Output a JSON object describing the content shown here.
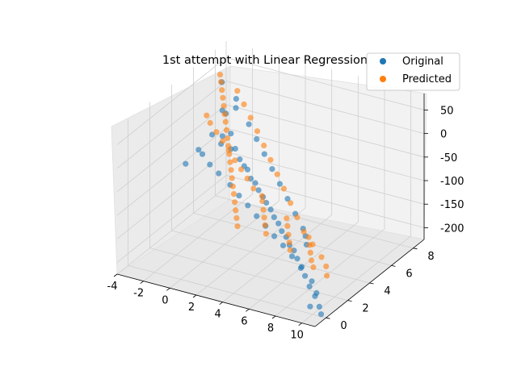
{
  "chart_data": {
    "type": "scatter",
    "projection": "3d",
    "title": "1st attempt with Linear Regression",
    "xlabel": "",
    "ylabel": "",
    "zlabel": "",
    "grid": true,
    "legend_position": "top-right",
    "xlim": [
      -4,
      11
    ],
    "ylim": [
      -1,
      9
    ],
    "zlim": [
      -225,
      85
    ],
    "x_ticks": [
      "-4",
      "-2",
      "0",
      "2",
      "4",
      "6",
      "8",
      "10"
    ],
    "y_ticks": [
      "0",
      "2",
      "4",
      "6",
      "8"
    ],
    "z_ticks": [
      "50",
      "0",
      "-50",
      "-100",
      "-150",
      "-200"
    ],
    "series": [
      {
        "name": "Original",
        "color": "#1f77b4",
        "points": [
          [
            -3.5,
            8.0,
            20
          ],
          [
            -3.0,
            6.5,
            -60
          ],
          [
            -2.8,
            7.2,
            -20
          ],
          [
            -2.2,
            6.8,
            -15
          ],
          [
            -1.8,
            6.0,
            -45
          ],
          [
            -1.5,
            5.5,
            -50
          ],
          [
            -1.0,
            5.8,
            -30
          ],
          [
            -0.5,
            5.2,
            -48
          ],
          [
            0.0,
            5.0,
            -40
          ],
          [
            0.5,
            4.8,
            -55
          ],
          [
            1.0,
            4.6,
            -62
          ],
          [
            1.5,
            4.3,
            -60
          ],
          [
            2.0,
            4.0,
            -70
          ],
          [
            2.5,
            3.8,
            -72
          ],
          [
            3.0,
            3.5,
            -78
          ],
          [
            3.5,
            3.3,
            -85
          ],
          [
            4.0,
            3.0,
            -88
          ],
          [
            4.5,
            2.8,
            -95
          ],
          [
            5.0,
            2.5,
            -102
          ],
          [
            5.5,
            2.3,
            -108
          ],
          [
            6.0,
            2.0,
            -115
          ],
          [
            6.5,
            1.8,
            -120
          ],
          [
            7.0,
            1.5,
            -128
          ],
          [
            7.5,
            1.3,
            -132
          ],
          [
            8.0,
            1.0,
            -140
          ],
          [
            8.5,
            0.8,
            -150
          ],
          [
            9.0,
            0.5,
            -160
          ],
          [
            9.5,
            0.3,
            -175
          ],
          [
            10.0,
            0.2,
            -190
          ],
          [
            10.5,
            0.0,
            -205
          ],
          [
            -2.0,
            7.5,
            5
          ],
          [
            -1.2,
            6.5,
            10
          ],
          [
            0.2,
            6.0,
            -5
          ],
          [
            1.2,
            5.5,
            -20
          ],
          [
            2.2,
            5.0,
            -35
          ],
          [
            3.2,
            4.5,
            -50
          ],
          [
            4.2,
            4.0,
            -65
          ],
          [
            5.2,
            3.5,
            -80
          ],
          [
            6.2,
            3.0,
            -95
          ],
          [
            7.2,
            2.5,
            -110
          ],
          [
            -3.2,
            5.5,
            -75
          ],
          [
            -2.5,
            5.0,
            -70
          ],
          [
            -1.6,
            4.6,
            -78
          ],
          [
            -0.6,
            4.2,
            -82
          ],
          [
            0.6,
            3.8,
            -90
          ],
          [
            1.6,
            3.4,
            -98
          ],
          [
            2.6,
            3.0,
            -104
          ],
          [
            3.6,
            2.6,
            -112
          ],
          [
            4.6,
            2.2,
            -118
          ],
          [
            5.6,
            1.8,
            -125
          ],
          [
            6.6,
            1.4,
            -130
          ],
          [
            7.6,
            1.0,
            -138
          ],
          [
            8.6,
            0.6,
            -148
          ],
          [
            9.6,
            0.4,
            -165
          ],
          [
            10.2,
            0.1,
            -180
          ],
          [
            -3.6,
            4.8,
            -95
          ],
          [
            9.8,
            0.0,
            -210
          ],
          [
            10.8,
            -0.2,
            -215
          ],
          [
            8.2,
            1.6,
            -120
          ],
          [
            7.8,
            2.0,
            -112
          ]
        ]
      },
      {
        "name": "Predicted",
        "color": "#ff7f0e",
        "points": [
          [
            -3.8,
            8.2,
            30
          ],
          [
            -3.4,
            7.8,
            25
          ],
          [
            -3.0,
            7.4,
            18
          ],
          [
            -2.6,
            7.0,
            12
          ],
          [
            -2.2,
            6.6,
            5
          ],
          [
            -1.8,
            6.2,
            -2
          ],
          [
            -1.4,
            5.8,
            -8
          ],
          [
            -1.0,
            5.4,
            -15
          ],
          [
            -0.6,
            5.0,
            -22
          ],
          [
            -0.2,
            4.6,
            -28
          ],
          [
            0.2,
            4.2,
            -35
          ],
          [
            0.6,
            3.8,
            -42
          ],
          [
            1.0,
            3.4,
            -48
          ],
          [
            1.4,
            3.0,
            -55
          ],
          [
            1.8,
            2.6,
            -62
          ],
          [
            2.2,
            2.2,
            -68
          ],
          [
            2.6,
            1.8,
            -75
          ],
          [
            3.0,
            1.4,
            -82
          ],
          [
            3.4,
            1.0,
            -88
          ],
          [
            3.8,
            0.6,
            -95
          ],
          [
            4.2,
            2.4,
            -72
          ],
          [
            4.6,
            2.0,
            -80
          ],
          [
            5.0,
            1.6,
            -86
          ],
          [
            5.4,
            1.2,
            -92
          ],
          [
            5.8,
            0.8,
            -100
          ],
          [
            6.2,
            2.2,
            -90
          ],
          [
            6.6,
            1.8,
            -96
          ],
          [
            7.0,
            1.4,
            -104
          ],
          [
            7.4,
            1.0,
            -110
          ],
          [
            7.8,
            0.6,
            -116
          ],
          [
            8.2,
            1.8,
            -108
          ],
          [
            8.6,
            1.4,
            -114
          ],
          [
            9.0,
            1.0,
            -120
          ],
          [
            9.4,
            0.6,
            -126
          ],
          [
            9.8,
            0.3,
            -132
          ],
          [
            -3.0,
            6.0,
            -10
          ],
          [
            -2.4,
            5.6,
            -14
          ],
          [
            -1.6,
            5.2,
            -20
          ],
          [
            -0.8,
            4.8,
            -26
          ],
          [
            0.0,
            4.4,
            -32
          ],
          [
            0.8,
            4.0,
            -40
          ],
          [
            1.6,
            3.6,
            -46
          ],
          [
            2.4,
            3.2,
            -52
          ],
          [
            3.2,
            2.8,
            -60
          ],
          [
            4.0,
            2.6,
            -66
          ],
          [
            -2.0,
            7.6,
            20
          ],
          [
            -1.0,
            7.0,
            10
          ],
          [
            0.0,
            6.4,
            0
          ],
          [
            1.0,
            5.8,
            -10
          ],
          [
            2.0,
            5.2,
            -22
          ],
          [
            3.0,
            4.6,
            -34
          ],
          [
            4.0,
            4.0,
            -46
          ],
          [
            5.0,
            3.4,
            -58
          ],
          [
            6.0,
            2.8,
            -70
          ],
          [
            7.0,
            2.2,
            -82
          ],
          [
            8.0,
            1.6,
            -94
          ],
          [
            9.0,
            1.2,
            -106
          ],
          [
            10.0,
            0.8,
            -118
          ],
          [
            10.6,
            0.5,
            -128
          ],
          [
            10.9,
            0.2,
            -140
          ]
        ]
      }
    ]
  }
}
